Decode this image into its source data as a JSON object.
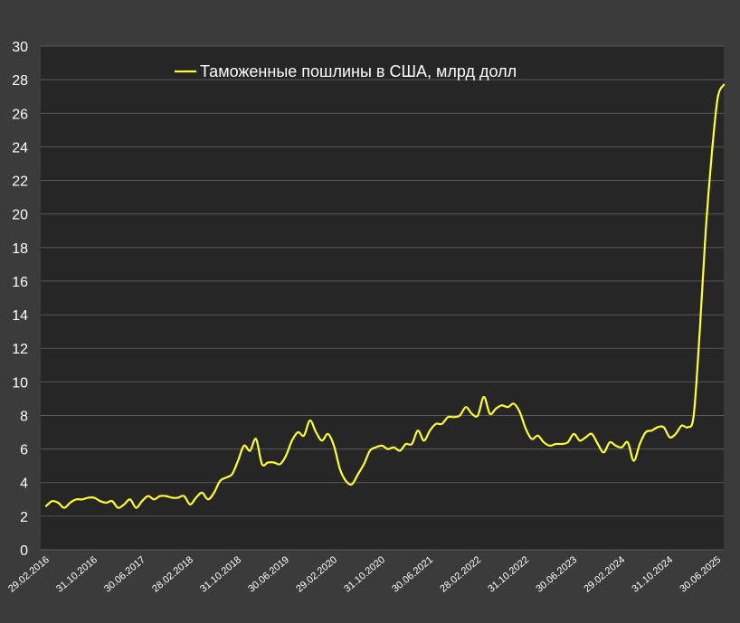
{
  "chart_data": {
    "type": "line",
    "series": [
      {
        "name": "Таможенные пошлины в США, млрд долл",
        "color": "#ffff33",
        "x": [
          "29.02.2016",
          "31.03.2016",
          "30.04.2016",
          "31.05.2016",
          "30.06.2016",
          "31.07.2016",
          "31.08.2016",
          "30.09.2016",
          "31.10.2016",
          "30.11.2016",
          "31.12.2016",
          "31.01.2017",
          "28.02.2017",
          "31.03.2017",
          "30.04.2017",
          "31.05.2017",
          "30.06.2017",
          "31.07.2017",
          "31.08.2017",
          "30.09.2017",
          "31.10.2017",
          "30.11.2017",
          "31.12.2017",
          "31.01.2018",
          "28.02.2018",
          "31.03.2018",
          "30.04.2018",
          "31.05.2018",
          "30.06.2018",
          "31.07.2018",
          "31.08.2018",
          "30.09.2018",
          "31.10.2018",
          "30.11.2018",
          "31.12.2018",
          "31.01.2019",
          "28.02.2019",
          "31.03.2019",
          "30.04.2019",
          "31.05.2019",
          "30.06.2019",
          "31.07.2019",
          "31.08.2019",
          "30.09.2019",
          "31.10.2019",
          "30.11.2019",
          "31.12.2019",
          "31.01.2020",
          "29.02.2020",
          "31.03.2020",
          "30.04.2020",
          "31.05.2020",
          "30.06.2020",
          "31.07.2020",
          "31.08.2020",
          "30.09.2020",
          "31.10.2020",
          "30.11.2020",
          "31.12.2020",
          "31.01.2021",
          "28.02.2021",
          "31.03.2021",
          "30.04.2021",
          "31.05.2021",
          "30.06.2021",
          "31.07.2021",
          "31.08.2021",
          "30.09.2021",
          "31.10.2021",
          "30.11.2021",
          "31.12.2021",
          "31.01.2022",
          "28.02.2022",
          "31.03.2022",
          "30.04.2022",
          "31.05.2022",
          "30.06.2022",
          "31.07.2022",
          "31.08.2022",
          "30.09.2022",
          "31.10.2022",
          "30.11.2022",
          "31.12.2022",
          "31.01.2023",
          "28.02.2023",
          "31.03.2023",
          "30.04.2023",
          "31.05.2023",
          "30.06.2023",
          "31.07.2023",
          "31.08.2023",
          "30.09.2023",
          "31.10.2023",
          "30.11.2023",
          "31.12.2023",
          "31.01.2024",
          "29.02.2024",
          "31.03.2024",
          "30.04.2024",
          "31.05.2024",
          "30.06.2024",
          "31.07.2024",
          "31.08.2024",
          "30.09.2024",
          "31.10.2024",
          "30.11.2024",
          "31.12.2024",
          "31.01.2025",
          "28.02.2025",
          "31.03.2025",
          "30.04.2025",
          "31.05.2025",
          "30.06.2025",
          "31.07.2025"
        ],
        "values": [
          2.6,
          2.9,
          2.8,
          2.5,
          2.8,
          3.0,
          3.0,
          3.1,
          3.1,
          2.9,
          2.8,
          2.9,
          2.5,
          2.7,
          3.0,
          2.5,
          2.9,
          3.2,
          3.0,
          3.2,
          3.2,
          3.1,
          3.1,
          3.2,
          2.7,
          3.1,
          3.4,
          3.0,
          3.4,
          4.1,
          4.3,
          4.5,
          5.3,
          6.2,
          5.9,
          6.6,
          5.1,
          5.2,
          5.2,
          5.1,
          5.6,
          6.5,
          7.0,
          6.8,
          7.7,
          7.0,
          6.5,
          6.9,
          6.2,
          4.8,
          4.1,
          3.9,
          4.5,
          5.1,
          5.9,
          6.1,
          6.2,
          6.0,
          6.1,
          5.9,
          6.3,
          6.3,
          7.1,
          6.5,
          7.1,
          7.5,
          7.5,
          7.9,
          7.9,
          8.0,
          8.5,
          8.1,
          8.0,
          9.1,
          8.1,
          8.4,
          8.6,
          8.5,
          8.7,
          8.2,
          7.2,
          6.6,
          6.8,
          6.4,
          6.2,
          6.3,
          6.3,
          6.4,
          6.9,
          6.5,
          6.7,
          6.9,
          6.3,
          5.8,
          6.4,
          6.2,
          6.1,
          6.4,
          5.3,
          6.3,
          7.0,
          7.1,
          7.3,
          7.3,
          6.7,
          6.9,
          7.4,
          7.3,
          8.0,
          13.0,
          19.0,
          23.5,
          26.9,
          27.7
        ]
      }
    ],
    "xtick_labels": [
      "29.02.2016",
      "31.10.2016",
      "30.06.2017",
      "28.02.2018",
      "31.10.2018",
      "30.06.2019",
      "29.02.2020",
      "31.10.2020",
      "30.06.2021",
      "28.02.2022",
      "31.10.2022",
      "30.06.2023",
      "29.02.2024",
      "31.10.2024",
      "30.06.2025"
    ],
    "yticks": [
      0,
      2,
      4,
      6,
      8,
      10,
      12,
      14,
      16,
      18,
      20,
      22,
      24,
      26,
      28,
      30
    ],
    "ylim": [
      0,
      30
    ],
    "grid": true,
    "legend_position": "top-left",
    "background_color": "#3b3b3b",
    "plot_background_color": "#262626",
    "grid_color": "#595959",
    "text_color": "#ffffff"
  }
}
